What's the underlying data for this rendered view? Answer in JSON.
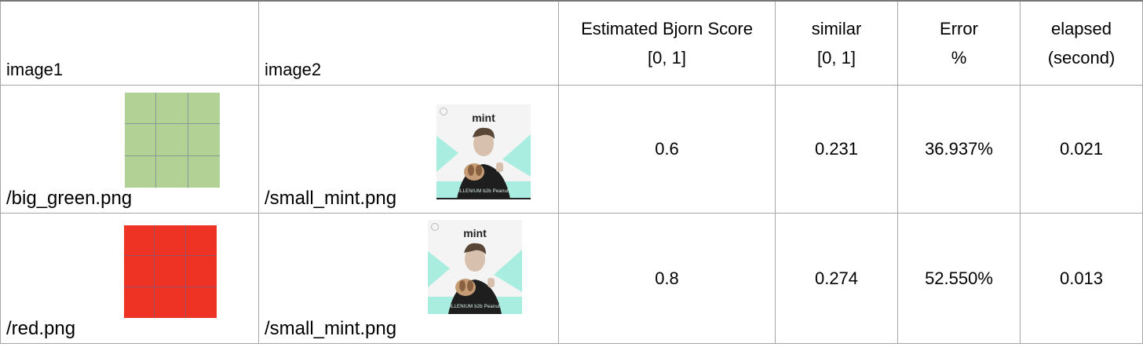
{
  "headers": {
    "image1": "image1",
    "image2": "image2",
    "bjorn_line1": "Estimated Bjorn Score",
    "bjorn_line2": "[0, 1]",
    "similar_line1": "similar",
    "similar_line2": "[0, 1]",
    "error_line1": "Error",
    "error_line2": "%",
    "elapsed_line1": "elapsed",
    "elapsed_line2": "(second)"
  },
  "rows": [
    {
      "image1_name": "/big_green.png",
      "image1_color": "#b2d194",
      "image2_name": "/small_mint.png",
      "thumb_brand": "mint",
      "thumb_caption": "ILLENIUM b2b Peanut",
      "bjorn": "0.6",
      "similar": "0.231",
      "error": "36.937%",
      "elapsed": "0.021"
    },
    {
      "image1_name": "/red.png",
      "image1_color": "#ee3224",
      "image2_name": "/small_mint.png",
      "thumb_brand": "mint",
      "thumb_caption": "ILLENIUM b2b Peanut",
      "bjorn": "0.8",
      "similar": "0.274",
      "error": "52.550%",
      "elapsed": "0.013"
    }
  ],
  "colors": {
    "mint": "#a8ede0",
    "grid_line": "#a6a6a6"
  }
}
